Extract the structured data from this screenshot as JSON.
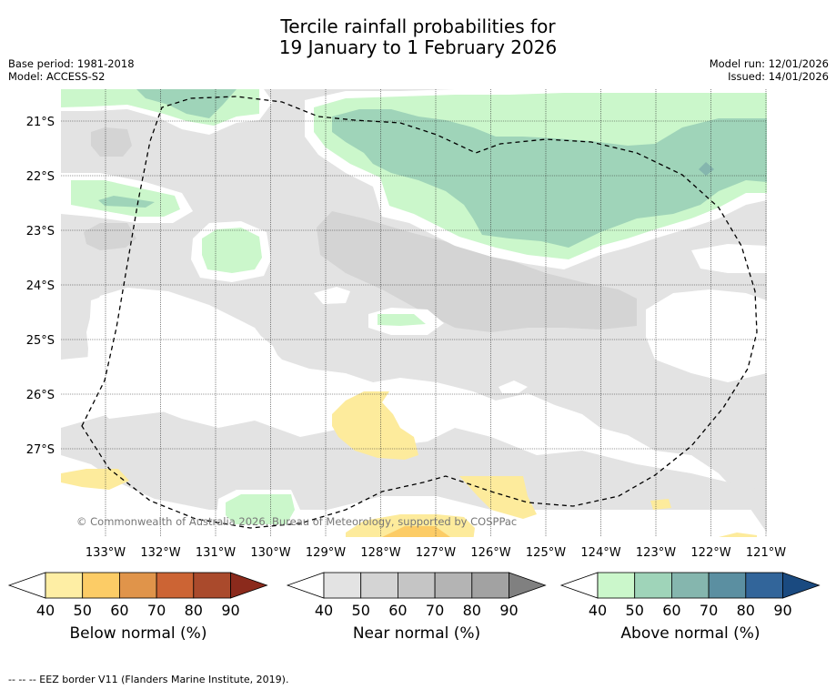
{
  "title": {
    "line1": "Tercile rainfall probabilities for",
    "line2": "19 January to 1 February 2026"
  },
  "meta": {
    "base_period": "Base period: 1981-2018",
    "model": "Model: ACCESS-S2",
    "model_run": "Model run: 12/01/2026",
    "issued": "Issued: 14/01/2026"
  },
  "map": {
    "lat_labels": [
      "21°S",
      "22°S",
      "23°S",
      "24°S",
      "25°S",
      "26°S",
      "27°S"
    ],
    "lon_labels": [
      "133°W",
      "132°W",
      "131°W",
      "130°W",
      "129°W",
      "128°W",
      "127°W",
      "126°W",
      "125°W",
      "124°W",
      "123°W",
      "122°W",
      "121°W"
    ],
    "copyright": "© Commonwealth of Australia 2026, Bureau of Meteorology, supported by COSPPac",
    "colors": {
      "near_40": "#e3e3e3",
      "near_50": "#d4d4d4",
      "above_40": "#cbf7cb",
      "above_50": "#9fd4b9",
      "above_60": "#85b6ae",
      "below_40": "#fdeb9c",
      "below_50": "#fccc66",
      "below_60": "#e0944a"
    }
  },
  "colorbars": [
    {
      "name": "below",
      "label": "Below normal (%)",
      "ticks": [
        "40",
        "50",
        "60",
        "70",
        "80",
        "90"
      ],
      "colors": [
        "#ffffff",
        "#feeea4",
        "#fccc66",
        "#e0944a",
        "#cc6434",
        "#aa4a2c",
        "#8b2a1c"
      ]
    },
    {
      "name": "near",
      "label": "Near normal (%)",
      "ticks": [
        "40",
        "50",
        "60",
        "70",
        "80",
        "90"
      ],
      "colors": [
        "#ffffff",
        "#e3e3e3",
        "#d4d4d4",
        "#c5c5c5",
        "#b4b4b4",
        "#a2a2a2",
        "#808080"
      ]
    },
    {
      "name": "above",
      "label": "Above normal (%)",
      "ticks": [
        "40",
        "50",
        "60",
        "70",
        "80",
        "90"
      ],
      "colors": [
        "#ffffff",
        "#cbf7cb",
        "#9fd4b9",
        "#85b6ae",
        "#5b8fa1",
        "#32659a",
        "#1a4a80"
      ]
    }
  ],
  "footer": "--  --  -- EEZ border V11 (Flanders Marine Institute, 2019)."
}
